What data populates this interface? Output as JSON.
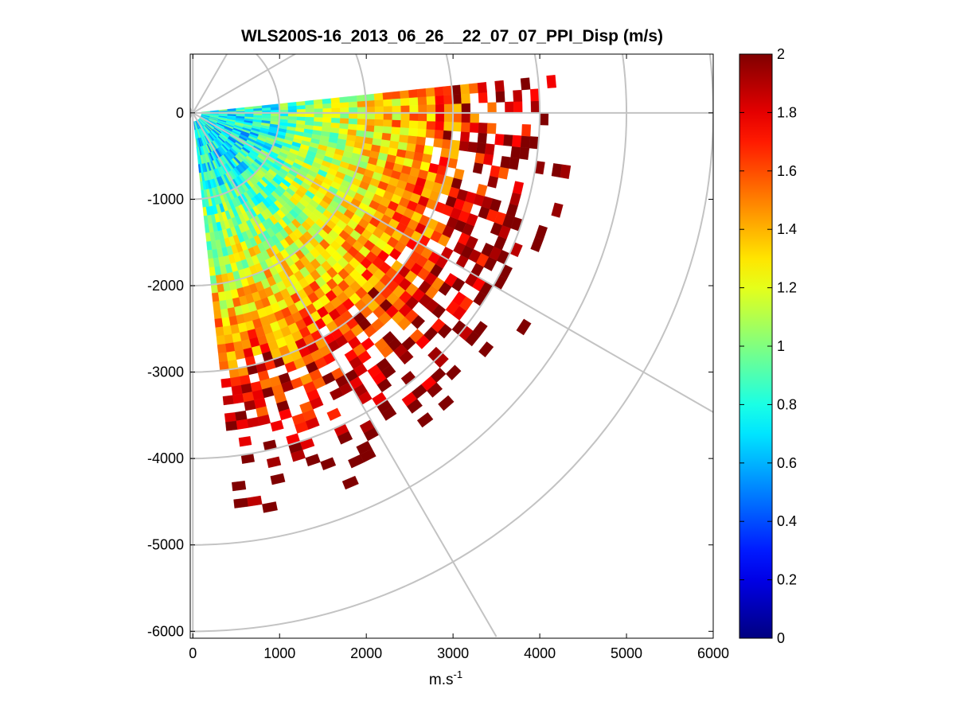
{
  "chart_data": {
    "type": "heatmap",
    "subtype": "polar-ppi-sector",
    "title": "WLS200S-16_2013_06_26__22_07_07_PPI_Disp (m/s)",
    "xlabel": "m.s",
    "xlabel_superscript": "-1",
    "ylabel": "",
    "xlim": [
      -30,
      6000
    ],
    "ylim": [
      -6080,
      680
    ],
    "xticks": [
      0,
      1000,
      2000,
      3000,
      4000,
      5000,
      6000
    ],
    "xtick_labels": [
      "0",
      "1000",
      "2000",
      "3000",
      "4000",
      "5000",
      "6000"
    ],
    "yticks": [
      0,
      -1000,
      -2000,
      -3000,
      -4000,
      -5000,
      -6000
    ],
    "ytick_labels": [
      "0",
      "-1000",
      "-2000",
      "-3000",
      "-4000",
      "-5000",
      "-6000"
    ],
    "grid": "polar",
    "polar_grid": {
      "ring_radii": [
        1000,
        2000,
        3000,
        4000,
        5000,
        6000
      ],
      "spoke_angles_deg": [
        0,
        30,
        60,
        90,
        120,
        150,
        180,
        210,
        240,
        270,
        300,
        330
      ]
    },
    "sector": {
      "azimuth_range_deg_from_east": [
        -84,
        5
      ],
      "range_max": 5300,
      "gate_spacing": 100,
      "beam_width_deg": 2
    },
    "colorbar": {
      "colormap": "jet",
      "clim": [
        0,
        2
      ],
      "ticks": [
        0,
        0.2,
        0.4,
        0.6,
        0.8,
        1,
        1.2,
        1.4,
        1.6,
        1.8,
        2
      ],
      "tick_labels": [
        "0",
        "0.2",
        "0.4",
        "0.6",
        "0.8",
        "1",
        "1.2",
        "1.4",
        "1.6",
        "1.8",
        "2"
      ],
      "placement": "right"
    },
    "value_trend": "values near 0.7-0.8 close to the lidar, rising to 1.2-2 at ranges beyond ~3000 m; isolated saturated returns (2) at the outer edge"
  }
}
